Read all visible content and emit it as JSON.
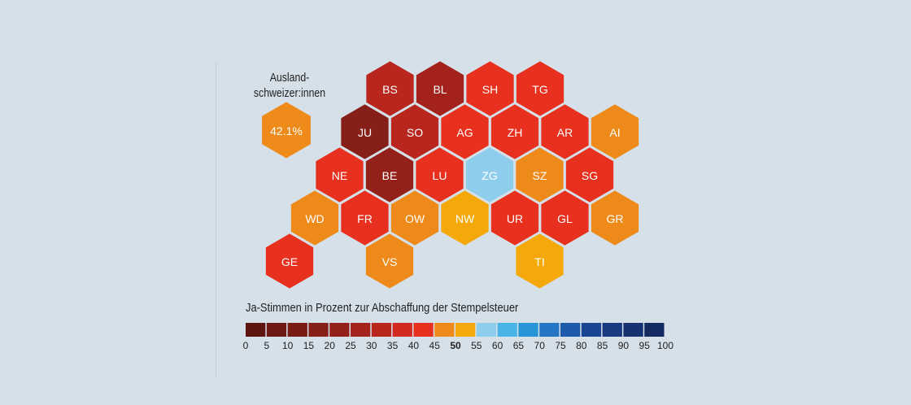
{
  "abroad": {
    "title_line1": "Ausland-",
    "title_line2": "schweizer:innen",
    "value_label": "42.1%",
    "color": "#ee8a1a"
  },
  "legend": {
    "title": "Ja-Stimmen in Prozent zur Abschaffung der Stempelsteuer",
    "ticks": [
      "0",
      "5",
      "10",
      "15",
      "20",
      "25",
      "30",
      "35",
      "40",
      "45",
      "50",
      "55",
      "60",
      "65",
      "70",
      "75",
      "80",
      "85",
      "90",
      "95",
      "100"
    ],
    "bold_tick": "50",
    "colors": [
      "#5e1510",
      "#6e1a14",
      "#7a1c16",
      "#861f17",
      "#93211a",
      "#a3231c",
      "#b8261e",
      "#d22a20",
      "#e8301f",
      "#ee8a1a",
      "#f4a80a",
      "#8fcdec",
      "#4ab4e6",
      "#2a94d8",
      "#2576c4",
      "#1e5aab",
      "#1a4593",
      "#183a80",
      "#163270",
      "#142b62"
    ]
  },
  "cantons": [
    {
      "code": "BS",
      "col": 1,
      "row": 0,
      "color": "#b8261e"
    },
    {
      "code": "BL",
      "col": 2,
      "row": 0,
      "color": "#a3231c"
    },
    {
      "code": "SH",
      "col": 3,
      "row": 0,
      "color": "#e8301f"
    },
    {
      "code": "TG",
      "col": 4,
      "row": 0,
      "color": "#e8301f"
    },
    {
      "code": "JU",
      "col": 0,
      "row": 1,
      "color": "#861f17"
    },
    {
      "code": "SO",
      "col": 1,
      "row": 1,
      "color": "#b8261e"
    },
    {
      "code": "AG",
      "col": 2,
      "row": 1,
      "color": "#e8301f"
    },
    {
      "code": "ZH",
      "col": 3,
      "row": 1,
      "color": "#e8301f"
    },
    {
      "code": "AR",
      "col": 4,
      "row": 1,
      "color": "#e8301f"
    },
    {
      "code": "AI",
      "col": 5,
      "row": 1,
      "color": "#ee8a1a"
    },
    {
      "code": "NE",
      "col": -1,
      "row": 2,
      "color": "#e8301f"
    },
    {
      "code": "BE",
      "col": 0,
      "row": 2,
      "color": "#93211a"
    },
    {
      "code": "LU",
      "col": 1,
      "row": 2,
      "color": "#e8301f"
    },
    {
      "code": "ZG",
      "col": 2,
      "row": 2,
      "color": "#8fcdec"
    },
    {
      "code": "SZ",
      "col": 3,
      "row": 2,
      "color": "#ee8a1a"
    },
    {
      "code": "SG",
      "col": 4,
      "row": 2,
      "color": "#e8301f"
    },
    {
      "code": "WD",
      "col": -1,
      "row": 3,
      "color": "#ee8a1a"
    },
    {
      "code": "FR",
      "col": 0,
      "row": 3,
      "color": "#e8301f"
    },
    {
      "code": "OW",
      "col": 1,
      "row": 3,
      "color": "#ee8a1a"
    },
    {
      "code": "NW",
      "col": 2,
      "row": 3,
      "color": "#f4a80a"
    },
    {
      "code": "UR",
      "col": 3,
      "row": 3,
      "color": "#e8301f"
    },
    {
      "code": "GL",
      "col": 4,
      "row": 3,
      "color": "#e8301f"
    },
    {
      "code": "GR",
      "col": 5,
      "row": 3,
      "color": "#ee8a1a"
    },
    {
      "code": "GE",
      "col": -2,
      "row": 4,
      "color": "#e8301f"
    },
    {
      "code": "VS",
      "col": 0,
      "row": 4,
      "color": "#ee8a1a"
    },
    {
      "code": "TI",
      "col": 3,
      "row": 4,
      "color": "#f4a80a"
    }
  ]
}
